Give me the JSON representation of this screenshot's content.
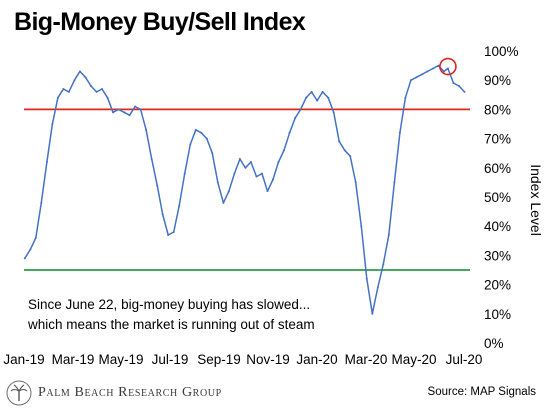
{
  "title": "Big-Money Buy/Sell Index",
  "annotation": {
    "line1": "Since June 22, big-money buying has slowed...",
    "line2": "which means the market is running out of steam"
  },
  "footer": {
    "brand": "Palm Beach Research Group",
    "source": "Source: MAP Signals"
  },
  "colors": {
    "series": "#4472c4",
    "upper_line": "#e0261c",
    "lower_line": "#2e9c4a",
    "highlight": "#e0261c"
  },
  "chart_data": {
    "type": "line",
    "title": "Big-Money Buy/Sell Index",
    "ylabel": "Index Level",
    "xlabel": "",
    "ylim": [
      0,
      100
    ],
    "y_ticks": [
      "0%",
      "10%",
      "20%",
      "30%",
      "40%",
      "50%",
      "60%",
      "70%",
      "80%",
      "90%",
      "100%"
    ],
    "x_ticks": [
      "Jan-19",
      "Mar-19",
      "May-19",
      "Jul-19",
      "Sep-19",
      "Nov-19",
      "Jan-20",
      "Mar-20",
      "May-20",
      "Jul-20"
    ],
    "reference_lines": [
      {
        "y": 80,
        "color": "#e0261c"
      },
      {
        "y": 25,
        "color": "#2e9c4a"
      }
    ],
    "highlight_point": {
      "x": "2020-06-22",
      "y": 94
    },
    "grid": false,
    "series": [
      {
        "values": [
          [
            "2019-01-02",
            29
          ],
          [
            "2019-01-09",
            32
          ],
          [
            "2019-01-16",
            36
          ],
          [
            "2019-01-23",
            48
          ],
          [
            "2019-01-30",
            62
          ],
          [
            "2019-02-06",
            75
          ],
          [
            "2019-02-13",
            84
          ],
          [
            "2019-02-20",
            87
          ],
          [
            "2019-02-27",
            86
          ],
          [
            "2019-03-06",
            90
          ],
          [
            "2019-03-13",
            93
          ],
          [
            "2019-03-20",
            91
          ],
          [
            "2019-03-27",
            88
          ],
          [
            "2019-04-03",
            86
          ],
          [
            "2019-04-10",
            87
          ],
          [
            "2019-04-17",
            84
          ],
          [
            "2019-04-24",
            79
          ],
          [
            "2019-05-01",
            80
          ],
          [
            "2019-05-08",
            79
          ],
          [
            "2019-05-15",
            78
          ],
          [
            "2019-05-22",
            81
          ],
          [
            "2019-05-29",
            80
          ],
          [
            "2019-06-05",
            73
          ],
          [
            "2019-06-12",
            63
          ],
          [
            "2019-06-19",
            54
          ],
          [
            "2019-06-26",
            44
          ],
          [
            "2019-07-03",
            37
          ],
          [
            "2019-07-10",
            38
          ],
          [
            "2019-07-17",
            47
          ],
          [
            "2019-07-24",
            58
          ],
          [
            "2019-07-31",
            68
          ],
          [
            "2019-08-07",
            73
          ],
          [
            "2019-08-14",
            72
          ],
          [
            "2019-08-21",
            70
          ],
          [
            "2019-08-28",
            65
          ],
          [
            "2019-09-04",
            55
          ],
          [
            "2019-09-11",
            48
          ],
          [
            "2019-09-18",
            52
          ],
          [
            "2019-09-25",
            58
          ],
          [
            "2019-10-02",
            63
          ],
          [
            "2019-10-09",
            60
          ],
          [
            "2019-10-16",
            62
          ],
          [
            "2019-10-23",
            57
          ],
          [
            "2019-10-30",
            58
          ],
          [
            "2019-11-06",
            52
          ],
          [
            "2019-11-13",
            56
          ],
          [
            "2019-11-20",
            62
          ],
          [
            "2019-11-27",
            66
          ],
          [
            "2019-12-04",
            72
          ],
          [
            "2019-12-11",
            77
          ],
          [
            "2019-12-18",
            80
          ],
          [
            "2019-12-25",
            84
          ],
          [
            "2020-01-01",
            86
          ],
          [
            "2020-01-08",
            83
          ],
          [
            "2020-01-15",
            86
          ],
          [
            "2020-01-22",
            84
          ],
          [
            "2020-01-29",
            79
          ],
          [
            "2020-02-05",
            69
          ],
          [
            "2020-02-12",
            66
          ],
          [
            "2020-02-19",
            64
          ],
          [
            "2020-02-26",
            55
          ],
          [
            "2020-03-04",
            40
          ],
          [
            "2020-03-11",
            22
          ],
          [
            "2020-03-18",
            10
          ],
          [
            "2020-03-25",
            19
          ],
          [
            "2020-04-01",
            27
          ],
          [
            "2020-04-08",
            37
          ],
          [
            "2020-04-15",
            55
          ],
          [
            "2020-04-22",
            72
          ],
          [
            "2020-04-29",
            84
          ],
          [
            "2020-05-06",
            90
          ],
          [
            "2020-05-13",
            91
          ],
          [
            "2020-05-20",
            92
          ],
          [
            "2020-05-27",
            93
          ],
          [
            "2020-06-03",
            94
          ],
          [
            "2020-06-10",
            95
          ],
          [
            "2020-06-17",
            93
          ],
          [
            "2020-06-22",
            94
          ],
          [
            "2020-06-29",
            89
          ],
          [
            "2020-07-06",
            88
          ],
          [
            "2020-07-13",
            86
          ]
        ]
      }
    ]
  }
}
